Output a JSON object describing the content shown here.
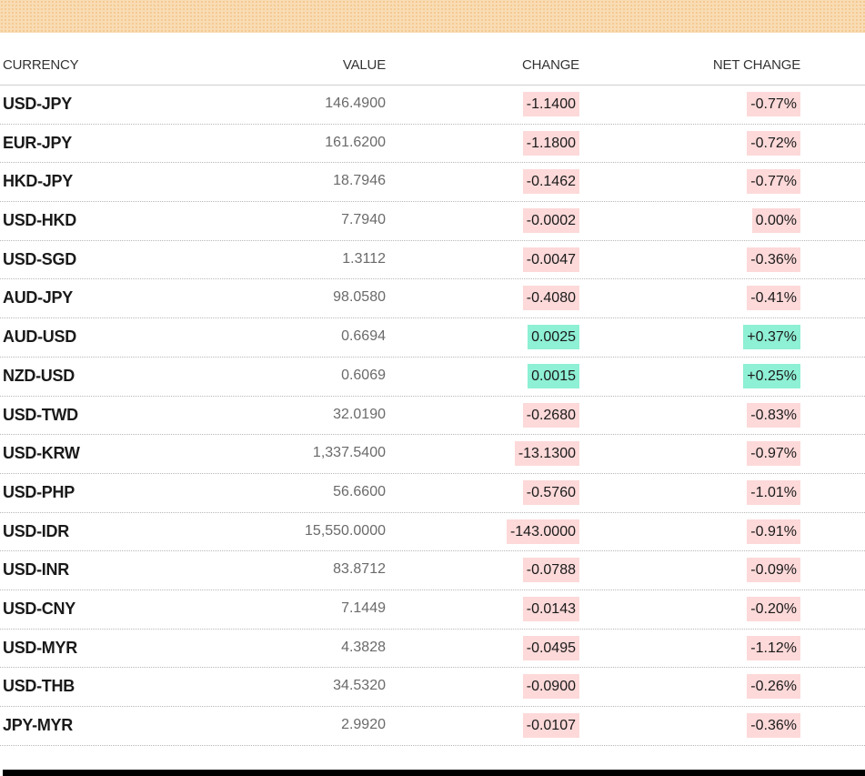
{
  "colors": {
    "band": "#f9dcb4",
    "negative_bg": "#fdd9d9",
    "positive_bg": "#8ef0d4",
    "bottom_rule": "#000000"
  },
  "headers": {
    "currency": "CURRENCY",
    "value": "VALUE",
    "change": "CHANGE",
    "net_change": "NET CHANGE"
  },
  "rows": [
    {
      "currency": "USD-JPY",
      "value": "146.4900",
      "change": "-1.1400",
      "net_change": "-0.77%",
      "direction": "neg"
    },
    {
      "currency": "EUR-JPY",
      "value": "161.6200",
      "change": "-1.1800",
      "net_change": "-0.72%",
      "direction": "neg"
    },
    {
      "currency": "HKD-JPY",
      "value": "18.7946",
      "change": "-0.1462",
      "net_change": "-0.77%",
      "direction": "neg"
    },
    {
      "currency": "USD-HKD",
      "value": "7.7940",
      "change": "-0.0002",
      "net_change": "0.00%",
      "direction": "neg"
    },
    {
      "currency": "USD-SGD",
      "value": "1.3112",
      "change": "-0.0047",
      "net_change": "-0.36%",
      "direction": "neg"
    },
    {
      "currency": "AUD-JPY",
      "value": "98.0580",
      "change": "-0.4080",
      "net_change": "-0.41%",
      "direction": "neg"
    },
    {
      "currency": "AUD-USD",
      "value": "0.6694",
      "change": "0.0025",
      "net_change": "+0.37%",
      "direction": "pos"
    },
    {
      "currency": "NZD-USD",
      "value": "0.6069",
      "change": "0.0015",
      "net_change": "+0.25%",
      "direction": "pos"
    },
    {
      "currency": "USD-TWD",
      "value": "32.0190",
      "change": "-0.2680",
      "net_change": "-0.83%",
      "direction": "neg"
    },
    {
      "currency": "USD-KRW",
      "value": "1,337.5400",
      "change": "-13.1300",
      "net_change": "-0.97%",
      "direction": "neg"
    },
    {
      "currency": "USD-PHP",
      "value": "56.6600",
      "change": "-0.5760",
      "net_change": "-1.01%",
      "direction": "neg"
    },
    {
      "currency": "USD-IDR",
      "value": "15,550.0000",
      "change": "-143.0000",
      "net_change": "-0.91%",
      "direction": "neg"
    },
    {
      "currency": "USD-INR",
      "value": "83.8712",
      "change": "-0.0788",
      "net_change": "-0.09%",
      "direction": "neg"
    },
    {
      "currency": "USD-CNY",
      "value": "7.1449",
      "change": "-0.0143",
      "net_change": "-0.20%",
      "direction": "neg"
    },
    {
      "currency": "USD-MYR",
      "value": "4.3828",
      "change": "-0.0495",
      "net_change": "-1.12%",
      "direction": "neg"
    },
    {
      "currency": "USD-THB",
      "value": "34.5320",
      "change": "-0.0900",
      "net_change": "-0.26%",
      "direction": "neg"
    },
    {
      "currency": "JPY-MYR",
      "value": "2.9920",
      "change": "-0.0107",
      "net_change": "-0.36%",
      "direction": "neg"
    }
  ]
}
